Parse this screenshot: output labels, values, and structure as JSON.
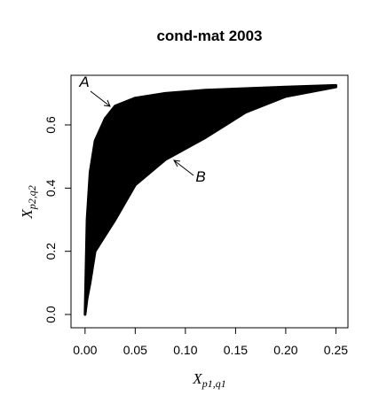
{
  "chart_data": {
    "type": "band",
    "title": "cond-mat 2003",
    "x_label": "X",
    "x_label_sub": "p1,q1",
    "y_label": "X",
    "y_label_sub": "p2,q2",
    "annotations": [
      "A",
      "B"
    ],
    "x": [
      0,
      0.002,
      0.005,
      0.01,
      0.02,
      0.03,
      0.05,
      0.08,
      0.12,
      0.16,
      0.2,
      0.25
    ],
    "series": [
      {
        "color": "#000000",
        "values": [
          0,
          0.3,
          0.45,
          0.55,
          0.62,
          0.66,
          0.685,
          0.7,
          0.71,
          0.715,
          0.72,
          0.725
        ]
      },
      {
        "color": "#000000",
        "values": [
          0,
          0.05,
          0.1,
          0.2,
          0.25,
          0.3,
          0.41,
          0.49,
          0.56,
          0.64,
          0.69,
          0.72
        ]
      }
    ],
    "xlim": [
      -0.014,
      0.262
    ],
    "ylim": [
      -0.042,
      0.757
    ],
    "xticks": [
      {
        "value": 0,
        "label": "0.00"
      },
      {
        "value": 0.05,
        "label": "0.05"
      },
      {
        "value": 0.1,
        "label": "0.10"
      },
      {
        "value": 0.15,
        "label": "0.15"
      },
      {
        "value": 0.2,
        "label": "0.20"
      },
      {
        "value": 0.25,
        "label": "0.25"
      }
    ],
    "yticks": [
      {
        "value": 0,
        "label": "0.0"
      },
      {
        "value": 0.2,
        "label": "0.2"
      },
      {
        "value": 0.4,
        "label": "0.4"
      },
      {
        "value": 0.6,
        "label": "0.6"
      }
    ],
    "grid": false
  }
}
